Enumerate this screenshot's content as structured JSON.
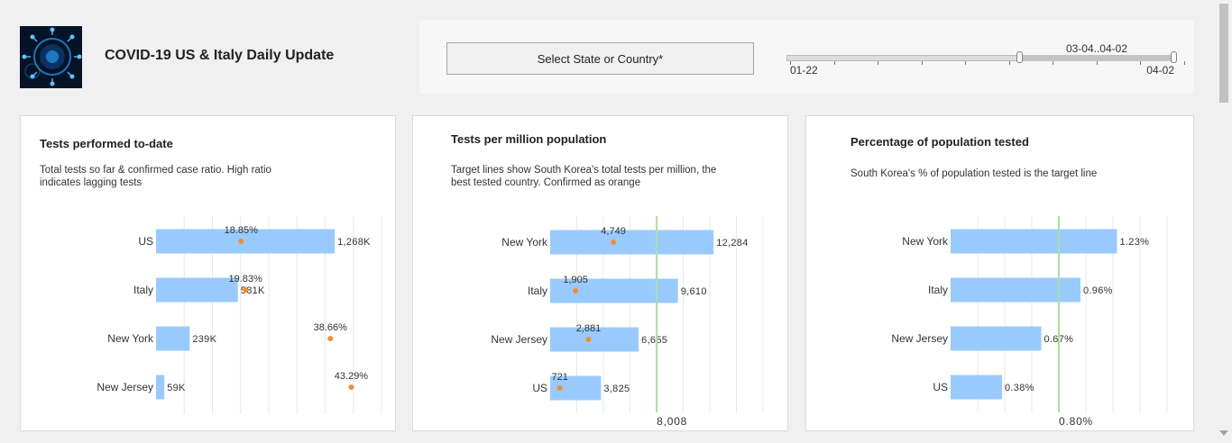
{
  "header": {
    "title": "COVID-19 US & Italy Daily Update",
    "select_label": "Select State or Country*",
    "slider": {
      "range_label": "03-04..04-02",
      "min_label": "01-22",
      "max_label": "04-02",
      "selected_start_fraction": 0.6,
      "selected_end_fraction": 1.0
    }
  },
  "colors": {
    "bar": "#99caff",
    "dot": "#f28e2b",
    "target": "#a8e0a0",
    "grid": "#e8e8e8"
  },
  "cards": [
    {
      "title": "Tests performed to-date",
      "subtitle_lines": [
        "Total tests so far & confirmed case ratio. High ratio",
        "indicates lagging tests"
      ]
    },
    {
      "title": "Tests per million population",
      "subtitle_lines": [
        "Target lines show South Korea's total tests per million, the",
        "best tested country. Confirmed as orange"
      ]
    },
    {
      "title": "Percentage of population tested",
      "subtitle_lines": [
        "South Korea's % of population tested is the target line"
      ]
    }
  ],
  "chart_data": [
    {
      "type": "bar",
      "categories": [
        "US",
        "Italy",
        "New York",
        "New Jersey"
      ],
      "series": [
        {
          "name": "",
          "values": [
            1268000,
            581000,
            239000,
            59000
          ],
          "labels": [
            "1,268K",
            "581K",
            "239K",
            "59K"
          ]
        }
      ],
      "ratio": {
        "values": [
          18.85,
          19.83,
          38.66,
          43.29
        ],
        "labels": [
          "18.85%",
          "19.83%",
          "38.66%",
          "43.29%"
        ],
        "max": 50
      },
      "xlim": [
        0,
        1600000
      ],
      "grid": true
    },
    {
      "type": "bar",
      "categories": [
        "New York",
        "Italy",
        "New Jersey",
        "US"
      ],
      "series": [
        {
          "name": "",
          "values": [
            12284,
            9610,
            6655,
            3825
          ],
          "labels": [
            "12,284",
            "9,610",
            "6,655",
            "3,825"
          ]
        },
        {
          "name": "",
          "values": [
            4749,
            1905,
            2881,
            721
          ],
          "labels": [
            "4,749",
            "1,905",
            "2,881",
            "721"
          ]
        }
      ],
      "target": {
        "value": 8008,
        "label": "8,008"
      },
      "xlim": [
        0,
        16000
      ],
      "grid": true
    },
    {
      "type": "bar",
      "categories": [
        "New York",
        "Italy",
        "New Jersey",
        "US"
      ],
      "series": [
        {
          "name": "",
          "values": [
            1.23,
            0.96,
            0.67,
            0.38
          ],
          "labels": [
            "1.23%",
            "0.96%",
            "0.67%",
            "0.38%"
          ]
        }
      ],
      "target": {
        "value": 0.8,
        "label": "0.80%"
      },
      "xlim": [
        0,
        1.6
      ],
      "grid": true
    }
  ]
}
